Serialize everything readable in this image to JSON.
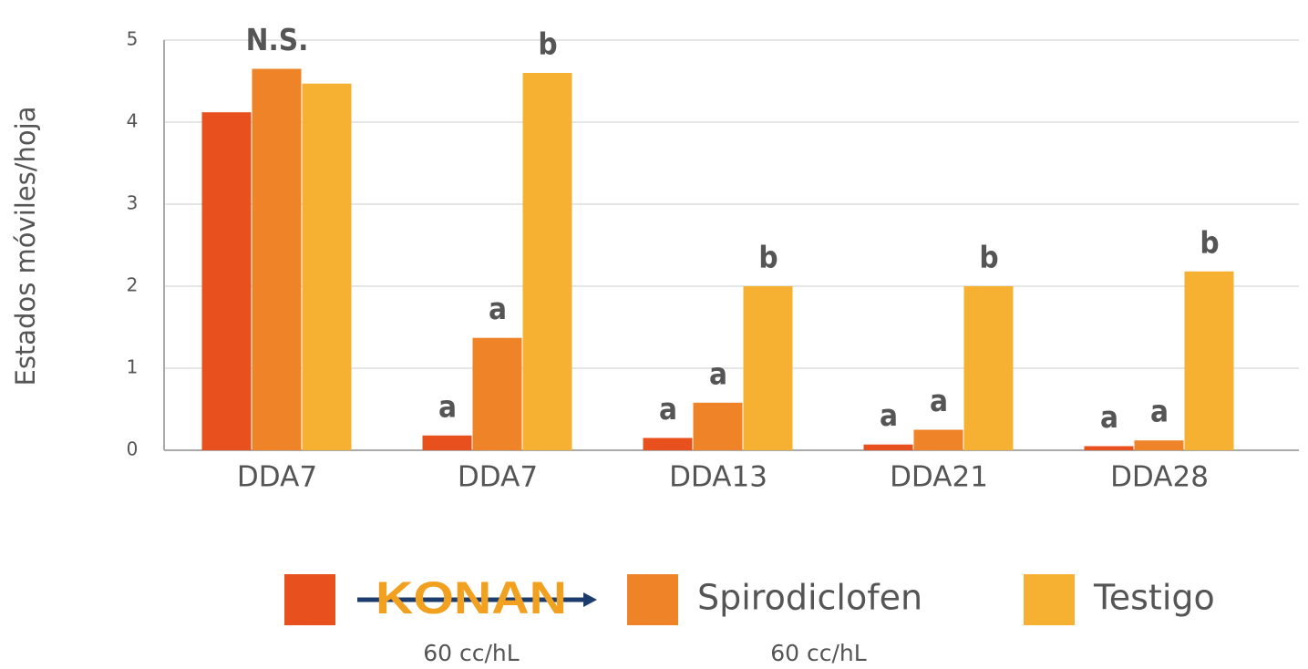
{
  "chart_data": {
    "type": "bar",
    "y_label": "Estados móviles/hoja",
    "categories": [
      "DDA7",
      "DDA7",
      "DDA13",
      "DDA21",
      "DDA28"
    ],
    "series": [
      {
        "name": "KONAN",
        "dose": "60 cc/hL",
        "color": "#e8501e",
        "values": [
          4.12,
          0.18,
          0.15,
          0.07,
          0.05
        ]
      },
      {
        "name": "Spirodiclofen",
        "dose": "60 cc/hL",
        "color": "#ee8427",
        "values": [
          4.65,
          1.37,
          0.58,
          0.25,
          0.12
        ]
      },
      {
        "name": "Testigo",
        "color": "#f6b132",
        "values": [
          4.47,
          4.6,
          2.0,
          2.0,
          2.18
        ]
      }
    ],
    "annotations": [
      {
        "text": "N.S.",
        "category": 0
      },
      {
        "text": "a",
        "category": 1,
        "series": 0
      },
      {
        "text": "a",
        "category": 1,
        "series": 1
      },
      {
        "text": "b",
        "category": 1,
        "series": 2
      },
      {
        "text": "a",
        "category": 2,
        "series": 0
      },
      {
        "text": "a",
        "category": 2,
        "series": 1
      },
      {
        "text": "b",
        "category": 2,
        "series": 2
      },
      {
        "text": "a",
        "category": 3,
        "series": 0
      },
      {
        "text": "a",
        "category": 3,
        "series": 1
      },
      {
        "text": "b",
        "category": 3,
        "series": 2
      },
      {
        "text": "a",
        "category": 4,
        "series": 0
      },
      {
        "text": "a",
        "category": 4,
        "series": 1
      },
      {
        "text": "b",
        "category": 4,
        "series": 2
      }
    ],
    "ylim": [
      0,
      5
    ],
    "yticks": [
      0,
      1,
      2,
      3,
      4,
      5
    ],
    "grid": true
  }
}
